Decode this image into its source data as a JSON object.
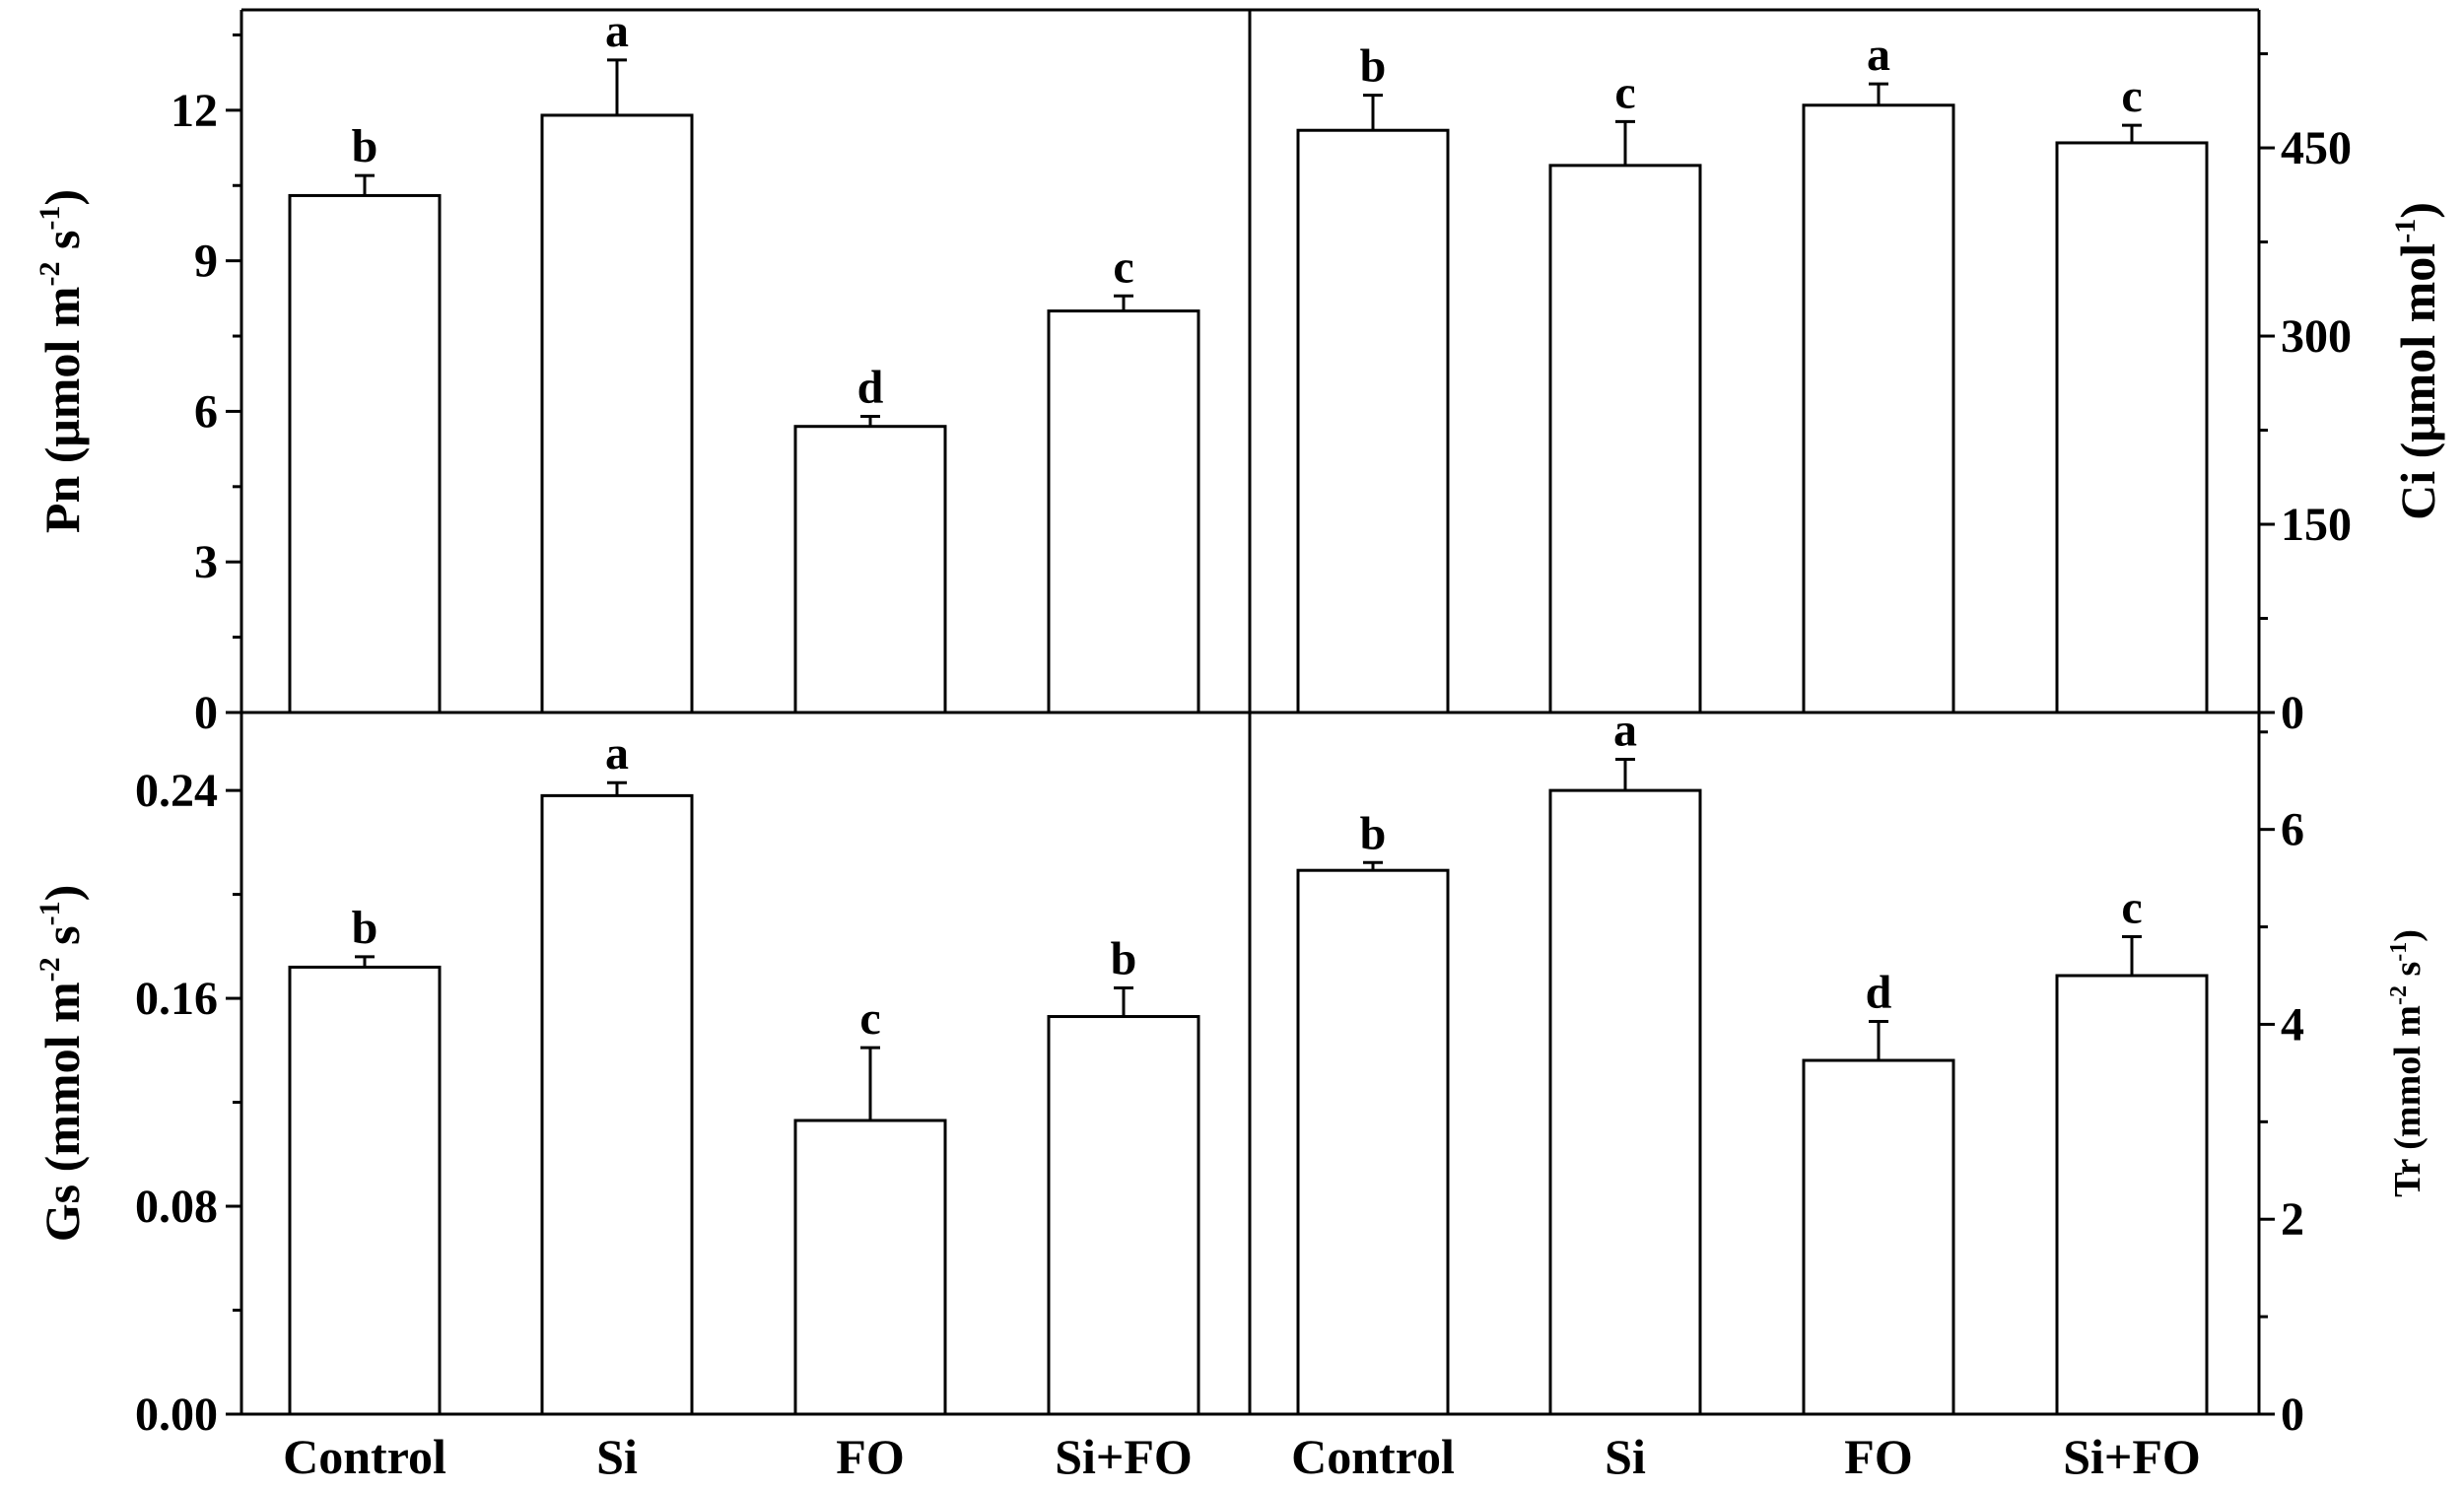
{
  "chart_data": [
    {
      "type": "bar",
      "panel": "top-left",
      "categories": [
        "Control",
        "Si",
        "FO",
        "Si+FO"
      ],
      "values": [
        10.3,
        11.9,
        5.7,
        8.0
      ],
      "errors": [
        0.4,
        1.1,
        0.2,
        0.3
      ],
      "significance": [
        "b",
        "a",
        "d",
        "c"
      ],
      "ylim": [
        0,
        14
      ],
      "yticks": [
        "0",
        "3",
        "6",
        "9",
        "12"
      ],
      "yticks_values": [
        0,
        3,
        6,
        9,
        12
      ],
      "axis_side": "left",
      "ylabel_main": "Pn (μmol m",
      "ylabel_sup1": "-2",
      "ylabel_mid": " s",
      "ylabel_sup2": "-1",
      "ylabel_end": ")"
    },
    {
      "type": "bar",
      "panel": "top-right",
      "categories": [
        "Control",
        "Si",
        "FO",
        "Si+FO"
      ],
      "values": [
        464,
        436,
        484,
        454
      ],
      "errors": [
        28,
        35,
        17,
        14
      ],
      "significance": [
        "b",
        "c",
        "a",
        "c"
      ],
      "ylim": [
        0,
        560
      ],
      "yticks": [
        "0",
        "150",
        "300",
        "450"
      ],
      "yticks_values": [
        0,
        150,
        300,
        450
      ],
      "axis_side": "right",
      "ylabel_main": "Ci  (μmol mol",
      "ylabel_sup1": "-1",
      "ylabel_end": ")"
    },
    {
      "type": "bar",
      "panel": "bottom-left",
      "categories": [
        "Control",
        "Si",
        "FO",
        "Si+FO"
      ],
      "values": [
        0.172,
        0.238,
        0.113,
        0.153
      ],
      "errors": [
        0.004,
        0.005,
        0.028,
        0.011
      ],
      "significance": [
        "b",
        "a",
        "c",
        "b"
      ],
      "ylim": [
        0,
        0.27
      ],
      "yticks": [
        "0.00",
        "0.08",
        "0.16",
        "0.24"
      ],
      "yticks_values": [
        0,
        0.08,
        0.16,
        0.24
      ],
      "axis_side": "left",
      "ylabel_main": "Gs (mmol m",
      "ylabel_sup1": "-2",
      "ylabel_mid": " s",
      "ylabel_sup2": "-1",
      "ylabel_end": ")"
    },
    {
      "type": "bar",
      "panel": "bottom-right",
      "categories": [
        "Control",
        "Si",
        "FO",
        "Si+FO"
      ],
      "values": [
        5.58,
        6.4,
        3.63,
        4.5
      ],
      "errors": [
        0.08,
        0.32,
        0.4,
        0.4
      ],
      "significance": [
        "b",
        "a",
        "d",
        "c"
      ],
      "ylim": [
        0,
        7.2
      ],
      "yticks": [
        "0",
        "2",
        "4",
        "6"
      ],
      "yticks_values": [
        0,
        2,
        4,
        6
      ],
      "axis_side": "right",
      "ylabel_main": "Tr (mmol m",
      "ylabel_sup1": "-2",
      "ylabel_mid": " s",
      "ylabel_sup2": "-1",
      "ylabel_end": ")"
    }
  ],
  "xlabels": [
    "Control",
    "Si",
    "FO",
    "Si+FO",
    "Control",
    "Si",
    "FO",
    "Si+FO"
  ]
}
